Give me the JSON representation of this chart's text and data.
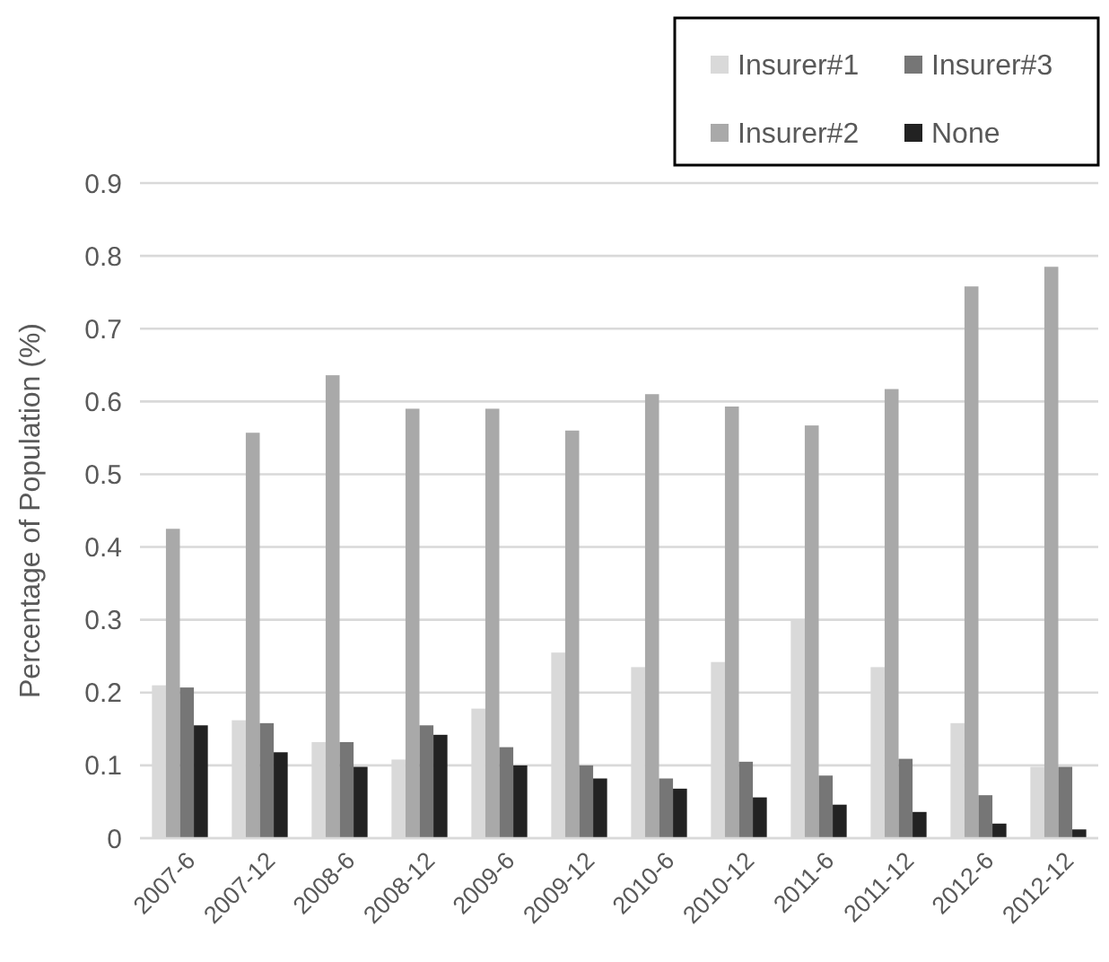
{
  "chart_data": {
    "type": "bar",
    "ylabel": "Percentage of Population (%)",
    "categories": [
      "2007-6",
      "2007-12",
      "2008-6",
      "2008-12",
      "2009-6",
      "2009-12",
      "2010-6",
      "2010-12",
      "2011-6",
      "2011-12",
      "2012-6",
      "2012-12"
    ],
    "series": [
      {
        "name": "Insurer#1",
        "color": "#d9d9d9",
        "values": [
          0.21,
          0.162,
          0.132,
          0.108,
          0.178,
          0.255,
          0.235,
          0.242,
          0.3,
          0.235,
          0.158,
          0.098
        ]
      },
      {
        "name": "Insurer#2",
        "color": "#a9a9a9",
        "values": [
          0.425,
          0.557,
          0.636,
          0.59,
          0.59,
          0.56,
          0.61,
          0.593,
          0.567,
          0.617,
          0.758,
          0.785
        ]
      },
      {
        "name": "Insurer#3",
        "color": "#767676",
        "values": [
          0.207,
          0.158,
          0.132,
          0.155,
          0.125,
          0.1,
          0.082,
          0.105,
          0.086,
          0.109,
          0.059,
          0.098
        ]
      },
      {
        "name": "None",
        "color": "#222222",
        "values": [
          0.155,
          0.118,
          0.098,
          0.142,
          0.1,
          0.082,
          0.068,
          0.056,
          0.046,
          0.036,
          0.02,
          0.012
        ]
      }
    ],
    "ylim": [
      0,
      0.9
    ],
    "yticks": [
      0,
      0.1,
      0.2,
      0.3,
      0.4,
      0.5,
      0.6,
      0.7,
      0.8,
      0.9
    ],
    "grid": "y",
    "legend": "top right"
  }
}
